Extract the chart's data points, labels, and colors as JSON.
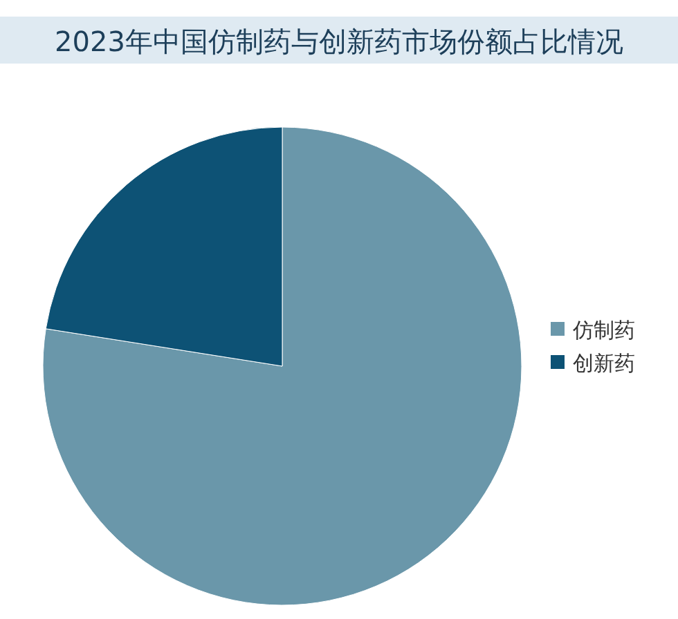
{
  "chart_data": {
    "type": "pie",
    "title": "2023年中国仿制药与创新药市场份额占比情况",
    "categories": [
      "仿制药",
      "创新药"
    ],
    "values": [
      77.5,
      22.5
    ],
    "colors": [
      "#6a97aa",
      "#0d5275"
    ],
    "legend": "right"
  }
}
